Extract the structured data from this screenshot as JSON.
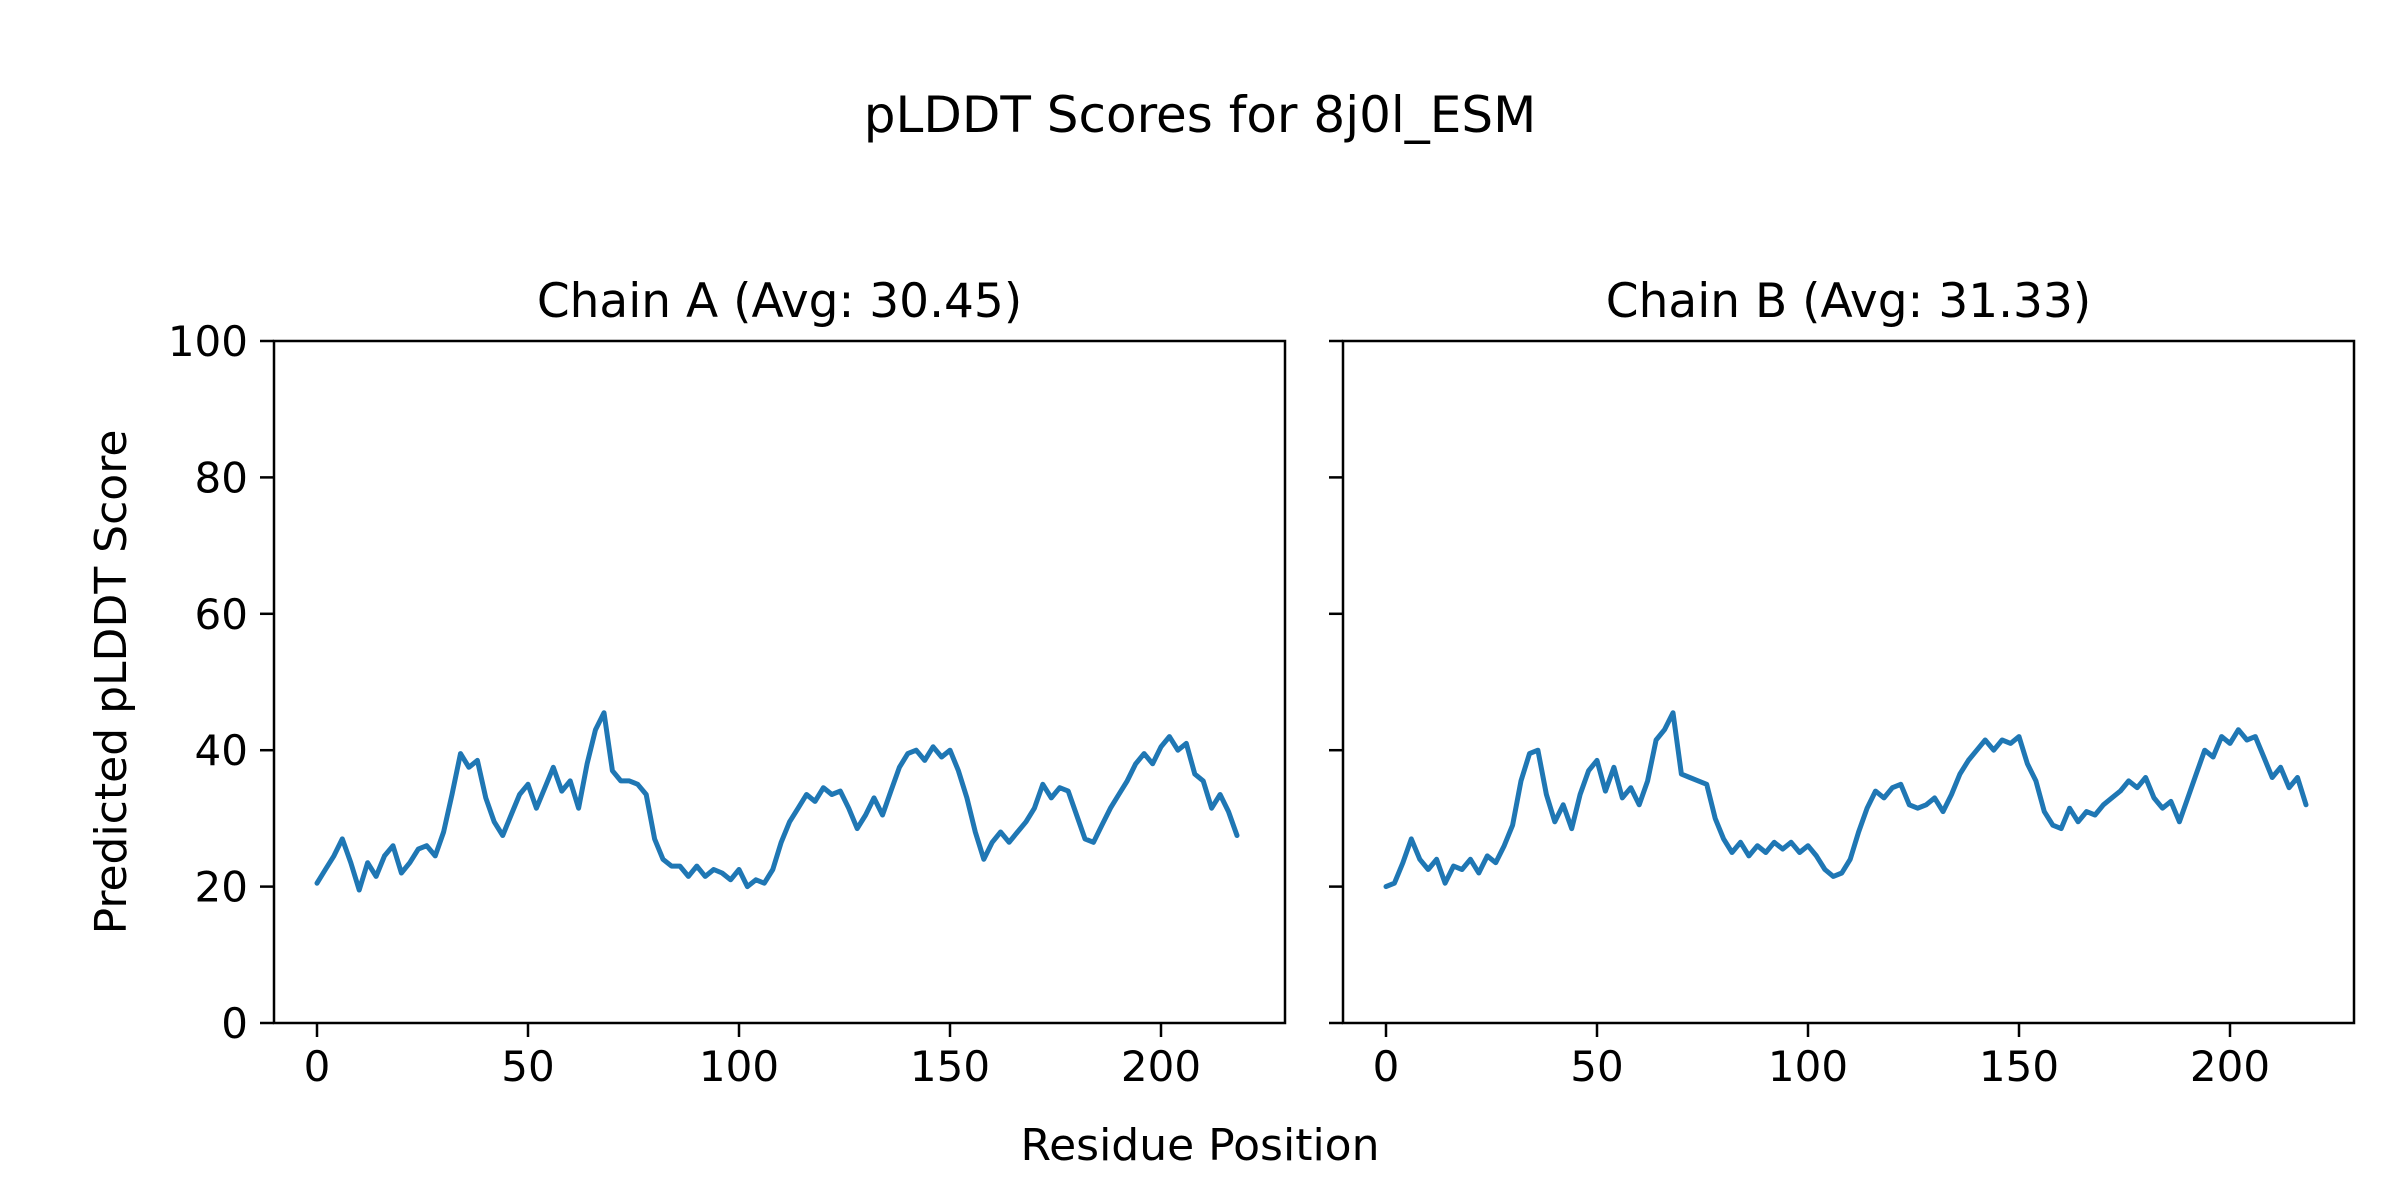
{
  "figure": {
    "title": "pLDDT Scores for 8j0l_ESM",
    "background_color": "#ffffff",
    "text_color": "#000000"
  },
  "chart_data": {
    "type": "line",
    "title": "pLDDT Scores for 8j0l_ESM",
    "xlabel": "Residue Position",
    "ylabel": "Predicted pLDDT Score",
    "xlim": [
      -11,
      230
    ],
    "ylim": [
      0,
      100
    ],
    "xticks": [
      0,
      50,
      100,
      150,
      200
    ],
    "yticks": [
      0,
      20,
      40,
      60,
      80,
      100
    ],
    "grid": false,
    "legend": false,
    "line_color": "#1f77b4",
    "subplots": [
      {
        "title": "Chain A (Avg: 30.45)",
        "chain": "A",
        "avg": 30.45,
        "show_yticklabels": true,
        "x": [
          0,
          2,
          4,
          6,
          8,
          10,
          12,
          14,
          16,
          18,
          20,
          22,
          24,
          26,
          28,
          30,
          32,
          34,
          36,
          38,
          40,
          42,
          44,
          46,
          48,
          50,
          52,
          54,
          56,
          58,
          60,
          62,
          64,
          66,
          68,
          70,
          72,
          74,
          76,
          78,
          80,
          82,
          84,
          86,
          88,
          90,
          92,
          94,
          96,
          98,
          100,
          102,
          104,
          106,
          108,
          110,
          112,
          114,
          116,
          118,
          120,
          122,
          124,
          126,
          128,
          130,
          132,
          134,
          136,
          138,
          140,
          142,
          144,
          146,
          148,
          150,
          152,
          154,
          156,
          158,
          160,
          162,
          164,
          166,
          168,
          170,
          172,
          174,
          176,
          178,
          180,
          182,
          184,
          186,
          188,
          190,
          192,
          194,
          196,
          198,
          200,
          202,
          204,
          206,
          208,
          210,
          212,
          214,
          216,
          218
        ],
        "y": [
          20.5,
          22.5,
          24.5,
          27,
          23.5,
          19.5,
          23.5,
          21.5,
          24.5,
          26,
          22,
          23.5,
          25.5,
          26,
          24.5,
          28,
          33.5,
          39.5,
          37.5,
          38.5,
          33,
          29.5,
          27.5,
          30.5,
          33.5,
          35,
          31.5,
          34.5,
          37.5,
          34,
          35.5,
          31.5,
          38,
          43,
          45.5,
          37,
          35.5,
          35.5,
          35,
          33.5,
          27,
          24,
          23,
          23,
          21.5,
          23,
          21.5,
          22.5,
          22,
          21,
          22.5,
          20,
          21,
          20.5,
          22.5,
          26.5,
          29.5,
          31.5,
          33.5,
          32.5,
          34.5,
          33.5,
          34,
          31.5,
          28.5,
          30.5,
          33,
          30.5,
          34,
          37.5,
          39.5,
          40,
          38.5,
          40.5,
          39,
          40,
          37,
          33,
          28,
          24,
          26.5,
          28,
          26.5,
          28,
          29.5,
          31.5,
          35,
          33,
          34.5,
          34,
          30.5,
          27,
          26.5,
          29,
          31.5,
          33.5,
          35.5,
          38,
          39.5,
          38,
          40.5,
          42,
          40,
          41,
          36.5,
          35.5,
          31.5,
          33.5,
          31,
          27.5
        ]
      },
      {
        "title": "Chain B (Avg: 31.33)",
        "chain": "B",
        "avg": 31.33,
        "show_yticklabels": false,
        "x": [
          0,
          2,
          4,
          6,
          8,
          10,
          12,
          14,
          16,
          18,
          20,
          22,
          24,
          26,
          28,
          30,
          32,
          34,
          36,
          38,
          40,
          42,
          44,
          46,
          48,
          50,
          52,
          54,
          56,
          58,
          60,
          62,
          64,
          66,
          68,
          70,
          72,
          74,
          76,
          78,
          80,
          82,
          84,
          86,
          88,
          90,
          92,
          94,
          96,
          98,
          100,
          102,
          104,
          106,
          108,
          110,
          112,
          114,
          116,
          118,
          120,
          122,
          124,
          126,
          128,
          130,
          132,
          134,
          136,
          138,
          140,
          142,
          144,
          146,
          148,
          150,
          152,
          154,
          156,
          158,
          160,
          162,
          164,
          166,
          168,
          170,
          172,
          174,
          176,
          178,
          180,
          182,
          184,
          186,
          188,
          190,
          192,
          194,
          196,
          198,
          200,
          202,
          204,
          206,
          208,
          210,
          212,
          214,
          216,
          218
        ],
        "y": [
          20,
          20.5,
          23.5,
          27,
          24,
          22.5,
          24,
          20.5,
          23,
          22.5,
          24,
          22,
          24.5,
          23.5,
          26,
          29,
          35.5,
          39.5,
          40,
          33.5,
          29.5,
          32,
          28.5,
          33.5,
          37,
          38.5,
          34,
          37.5,
          33,
          34.5,
          32,
          35.5,
          41.5,
          43,
          45.5,
          36.5,
          36,
          35.5,
          35,
          30,
          27,
          25,
          26.5,
          24.5,
          26,
          25,
          26.5,
          25.5,
          26.5,
          25,
          26,
          24.5,
          22.5,
          21.5,
          22,
          24,
          28,
          31.5,
          34,
          33,
          34.5,
          35,
          32,
          31.5,
          32,
          33,
          31,
          33.5,
          36.5,
          38.5,
          40,
          41.5,
          40,
          41.5,
          41,
          42,
          38,
          35.5,
          31,
          29,
          28.5,
          31.5,
          29.5,
          31,
          30.5,
          32,
          33,
          34,
          35.5,
          34.5,
          36,
          33,
          31.5,
          32.5,
          29.5,
          33,
          36.5,
          40,
          39,
          42,
          41,
          43,
          41.5,
          42,
          39,
          36,
          37.5,
          34.5,
          36,
          32
        ]
      }
    ]
  }
}
